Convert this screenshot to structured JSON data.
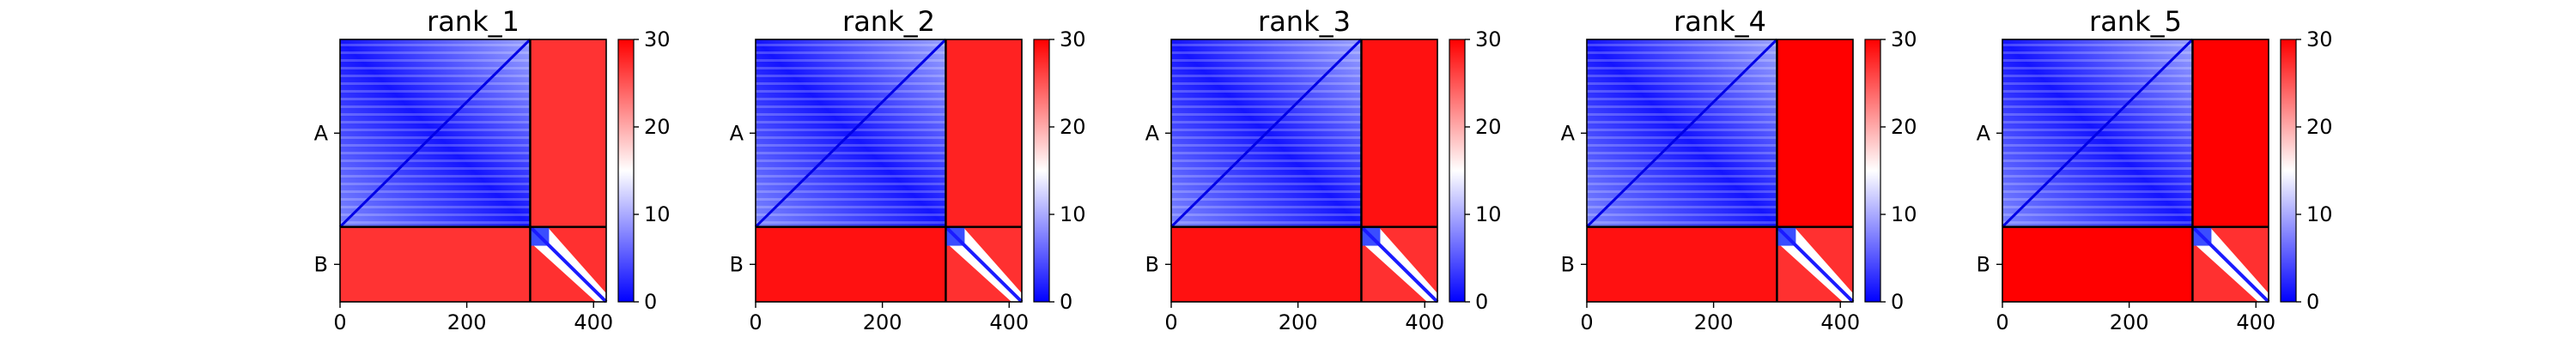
{
  "chart_data": {
    "type": "heatmap",
    "xlim": [
      0,
      420
    ],
    "x_ticks": [
      0,
      200,
      400
    ],
    "y_tick_labels": [
      "A",
      "B"
    ],
    "block_boundary": 300,
    "colorbar": {
      "ticks": [
        0,
        10,
        20,
        30
      ],
      "range": [
        0,
        30
      ],
      "colormap": [
        "#0000ff",
        "#ffffff",
        "#ff0000"
      ]
    },
    "panels": [
      {
        "title": "rank_1",
        "cross_ab_mean": 27,
        "cross_ba_mean": 27
      },
      {
        "title": "rank_2",
        "cross_ab_mean": 28,
        "cross_ba_mean": 29
      },
      {
        "title": "rank_3",
        "cross_ab_mean": 29,
        "cross_ba_mean": 29
      },
      {
        "title": "rank_4",
        "cross_ab_mean": 30,
        "cross_ba_mean": 29
      },
      {
        "title": "rank_5",
        "cross_ab_mean": 30,
        "cross_ba_mean": 30
      }
    ]
  }
}
